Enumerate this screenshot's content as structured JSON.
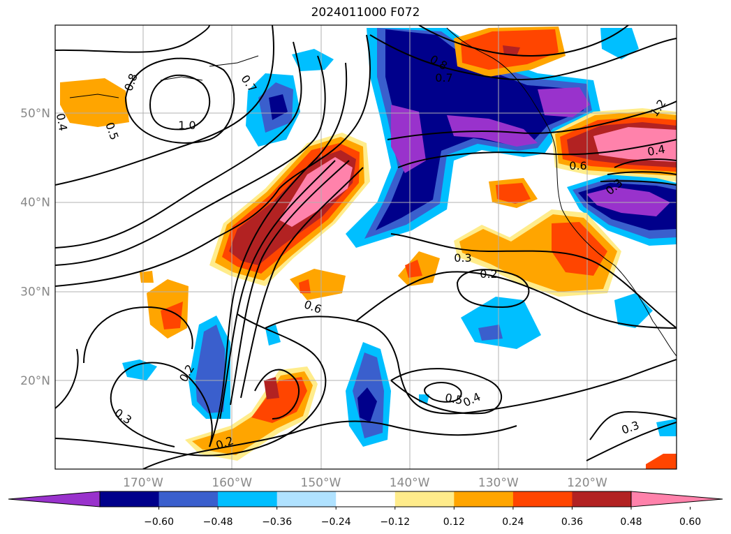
{
  "title": "2024011000 F072",
  "map": {
    "lat_labels": [
      {
        "deg": 50,
        "text": "50°N"
      },
      {
        "deg": 40,
        "text": "40°N"
      },
      {
        "deg": 30,
        "text": "30°N"
      },
      {
        "deg": 20,
        "text": "20°N"
      }
    ],
    "lon_labels": [
      {
        "deg": -170,
        "text": "170°W"
      },
      {
        "deg": -160,
        "text": "160°W"
      },
      {
        "deg": -150,
        "text": "150°W"
      },
      {
        "deg": -140,
        "text": "140°W"
      },
      {
        "deg": -130,
        "text": "130°W"
      },
      {
        "deg": -120,
        "text": "120°W"
      }
    ],
    "contour_labels": [
      "0.8",
      "0.7",
      "1.0",
      "0.5",
      "0.4",
      "0.6",
      "0.3",
      "0.2",
      "1.2",
      "0.8",
      "0.7",
      "0.6",
      "0.4",
      "0.3",
      "0.2",
      "0.5",
      "0.3",
      "0.2",
      "0.4",
      "0.3"
    ]
  },
  "colorbar": {
    "colors": [
      "#9932CC",
      "#00008B",
      "#3A5FCD",
      "#00BFFF",
      "#B0E2FF",
      "#FFFFFF",
      "#FFEC8B",
      "#FFA500",
      "#FF4500",
      "#B22222",
      "#FF82AB"
    ],
    "tick_labels": [
      "−0.60",
      "−0.48",
      "−0.36",
      "−0.24",
      "−0.12",
      "0.12",
      "0.24",
      "0.36",
      "0.48",
      "0.60"
    ]
  }
}
